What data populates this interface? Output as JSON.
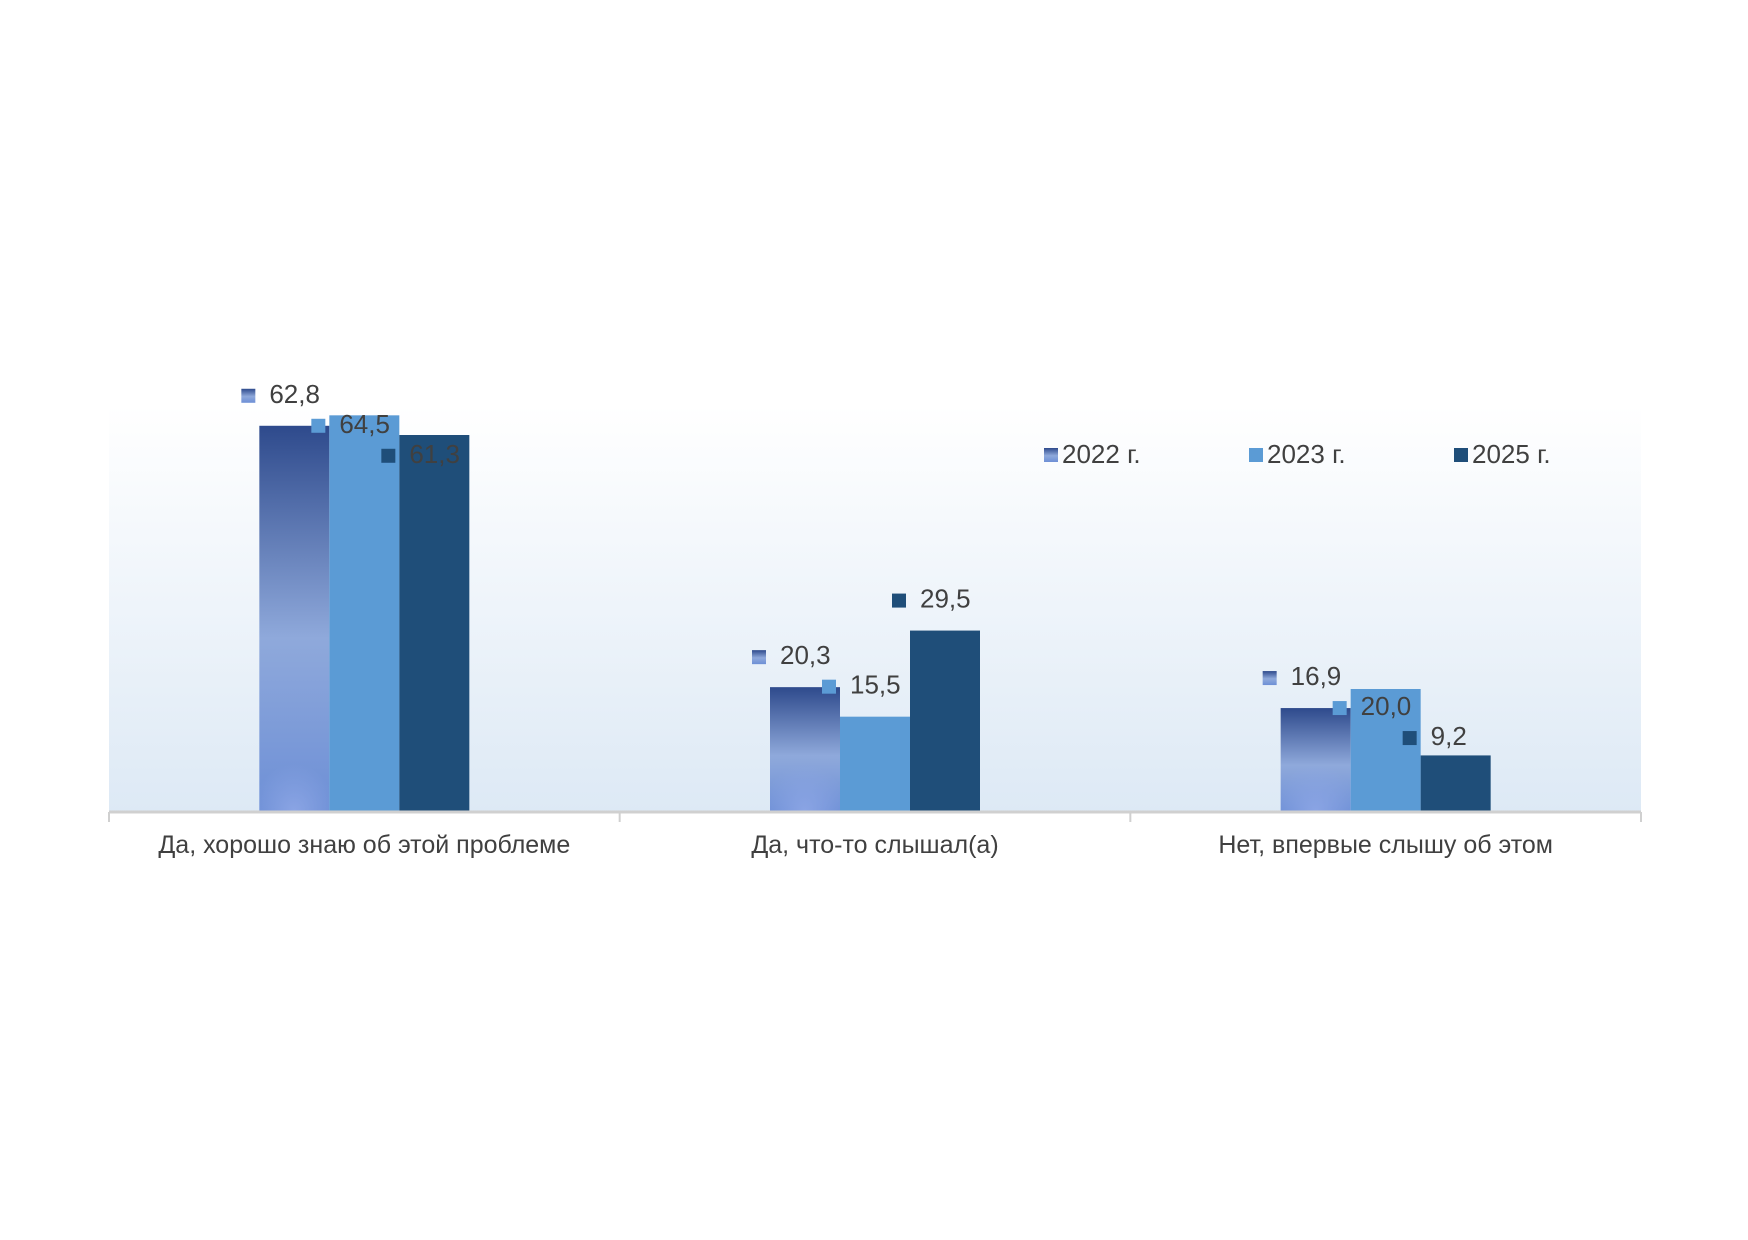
{
  "chart_data": {
    "type": "bar",
    "categories": [
      "Да, хорошо знаю об этой проблеме",
      "Да, что-то слышал(а)",
      "Нет, впервые слышу об этом"
    ],
    "series": [
      {
        "name": "2022 г.",
        "values": [
          62.8,
          20.3,
          16.9
        ],
        "labels": [
          "62,8",
          "20,3",
          "16,9"
        ],
        "color": "#3f5ea8"
      },
      {
        "name": "2023 г.",
        "values": [
          64.5,
          15.5,
          20.0
        ],
        "labels": [
          "64,5",
          "15,5",
          "20,0"
        ],
        "color": "#5b9bd5"
      },
      {
        "name": "2025 г.",
        "values": [
          61.3,
          29.5,
          9.2
        ],
        "labels": [
          "61,3",
          "29,5",
          "9,2"
        ],
        "color": "#1f4e79"
      }
    ],
    "ylim": [
      0,
      70
    ],
    "legend_position": "top-right",
    "grid": false
  }
}
